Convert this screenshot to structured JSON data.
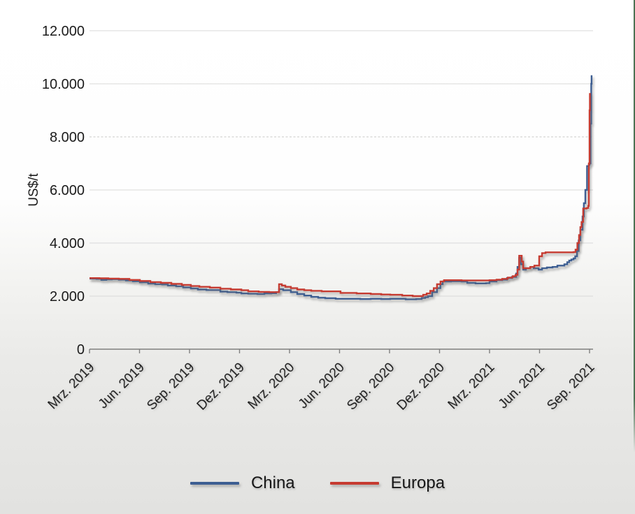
{
  "axes": {
    "ylabel": "US$/t",
    "y_ticks": [
      {
        "label": "12.000",
        "value": 12000
      },
      {
        "label": "10.000",
        "value": 10000
      },
      {
        "label": "8.000",
        "value": 8000
      },
      {
        "label": "6.000",
        "value": 6000
      },
      {
        "label": "4.000",
        "value": 4000
      },
      {
        "label": "2.000",
        "value": 2000
      },
      {
        "label": "0",
        "value": 0
      }
    ],
    "x_ticks": [
      "Mrz. 2019",
      "Jun. 2019",
      "Sep. 2019",
      "Dez. 2019",
      "Mrz. 2020",
      "Jun. 2020",
      "Sep. 2020",
      "Dez. 2020",
      "Mrz. 2021",
      "Jun. 2021",
      "Sep. 2021"
    ]
  },
  "legend": {
    "items": [
      {
        "label": "China",
        "color": "#3d5e92"
      },
      {
        "label": "Europa",
        "color": "#c63b31"
      }
    ]
  },
  "colors": {
    "china_line": "#3d5e92",
    "europa_line": "#c63b31",
    "gridline": "#d9d9d8",
    "axis": "#7f7f7f",
    "right_accent_green": "#4c7253"
  },
  "chart_data": {
    "type": "line",
    "title": "",
    "ylabel": "US$/t",
    "xlabel": "",
    "ylim": [
      0,
      12000
    ],
    "grid": "horizontal, dashed at 8000",
    "legend_position": "bottom",
    "x_unit": "months since Mrz. 2019 (0 = Mrz. 2019, 30 = Sep. 2021), ticks every 3 months",
    "x_tick_labels": [
      "Mrz. 2019",
      "Jun. 2019",
      "Sep. 2019",
      "Dez. 2019",
      "Mrz. 2020",
      "Jun. 2020",
      "Sep. 2020",
      "Dez. 2020",
      "Mrz. 2021",
      "Jun. 2021",
      "Sep. 2021"
    ],
    "interpolation": "step-after",
    "series": [
      {
        "name": "China",
        "color": "#3d5e92",
        "points": [
          [
            0,
            2660
          ],
          [
            0.42,
            2650
          ],
          [
            0.71,
            2610
          ],
          [
            1.01,
            2630
          ],
          [
            1.34,
            2640
          ],
          [
            1.76,
            2620
          ],
          [
            2.18,
            2590
          ],
          [
            2.6,
            2560
          ],
          [
            3.02,
            2520
          ],
          [
            3.52,
            2470
          ],
          [
            3.94,
            2450
          ],
          [
            4.36,
            2440
          ],
          [
            4.7,
            2400
          ],
          [
            5.2,
            2370
          ],
          [
            5.62,
            2330
          ],
          [
            6.08,
            2290
          ],
          [
            6.5,
            2250
          ],
          [
            7.01,
            2230
          ],
          [
            7.43,
            2230
          ],
          [
            7.85,
            2170
          ],
          [
            8.27,
            2150
          ],
          [
            8.81,
            2130
          ],
          [
            9.11,
            2100
          ],
          [
            9.52,
            2090
          ],
          [
            10.07,
            2080
          ],
          [
            10.49,
            2100
          ],
          [
            10.91,
            2110
          ],
          [
            11.2,
            2150
          ],
          [
            11.37,
            2260
          ],
          [
            11.62,
            2220
          ],
          [
            12.08,
            2150
          ],
          [
            12.46,
            2080
          ],
          [
            12.88,
            2020
          ],
          [
            13.3,
            1970
          ],
          [
            13.72,
            1940
          ],
          [
            14.14,
            1920
          ],
          [
            14.77,
            1900
          ],
          [
            15.61,
            1900
          ],
          [
            16.24,
            1890
          ],
          [
            16.87,
            1900
          ],
          [
            17.5,
            1890
          ],
          [
            18.04,
            1900
          ],
          [
            18.55,
            1900
          ],
          [
            18.97,
            1880
          ],
          [
            19.6,
            1890
          ],
          [
            19.93,
            1930
          ],
          [
            20.14,
            1960
          ],
          [
            20.31,
            2000
          ],
          [
            20.56,
            2150
          ],
          [
            20.85,
            2300
          ],
          [
            21.05,
            2450
          ],
          [
            21.19,
            2550
          ],
          [
            21.69,
            2560
          ],
          [
            22.32,
            2550
          ],
          [
            22.66,
            2500
          ],
          [
            23.16,
            2480
          ],
          [
            23.79,
            2490
          ],
          [
            24,
            2550
          ],
          [
            24.42,
            2600
          ],
          [
            24.76,
            2620
          ],
          [
            25.05,
            2680
          ],
          [
            25.34,
            2720
          ],
          [
            25.6,
            2850
          ],
          [
            25.68,
            3100
          ],
          [
            25.78,
            3450
          ],
          [
            25.89,
            3200
          ],
          [
            26.02,
            3000
          ],
          [
            26.18,
            3050
          ],
          [
            26.44,
            3100
          ],
          [
            26.65,
            3050
          ],
          [
            26.94,
            3000
          ],
          [
            27.15,
            3050
          ],
          [
            27.44,
            3080
          ],
          [
            27.78,
            3100
          ],
          [
            28.07,
            3150
          ],
          [
            28.32,
            3150
          ],
          [
            28.49,
            3200
          ],
          [
            28.66,
            3280
          ],
          [
            28.78,
            3340
          ],
          [
            28.91,
            3380
          ],
          [
            29.04,
            3420
          ],
          [
            29.14,
            3500
          ],
          [
            29.25,
            3700
          ],
          [
            29.35,
            4100
          ],
          [
            29.45,
            4500
          ],
          [
            29.58,
            5000
          ],
          [
            29.66,
            5500
          ],
          [
            29.75,
            6000
          ],
          [
            29.85,
            6900
          ],
          [
            29.96,
            6950
          ],
          [
            30,
            7000
          ],
          [
            30.06,
            8500
          ],
          [
            30.1,
            10000
          ],
          [
            30.12,
            10320
          ]
        ]
      },
      {
        "name": "Europa",
        "color": "#c63b31",
        "points": [
          [
            0,
            2680
          ],
          [
            0.59,
            2670
          ],
          [
            1.13,
            2660
          ],
          [
            1.76,
            2650
          ],
          [
            2.39,
            2610
          ],
          [
            3.02,
            2570
          ],
          [
            3.65,
            2530
          ],
          [
            4.28,
            2500
          ],
          [
            4.91,
            2460
          ],
          [
            5.54,
            2420
          ],
          [
            6.08,
            2380
          ],
          [
            6.59,
            2350
          ],
          [
            7.22,
            2320
          ],
          [
            7.85,
            2280
          ],
          [
            8.48,
            2250
          ],
          [
            9.11,
            2220
          ],
          [
            9.52,
            2180
          ],
          [
            10.15,
            2160
          ],
          [
            10.78,
            2150
          ],
          [
            11.24,
            2150
          ],
          [
            11.37,
            2450
          ],
          [
            11.54,
            2400
          ],
          [
            11.75,
            2350
          ],
          [
            12.08,
            2300
          ],
          [
            12.46,
            2250
          ],
          [
            12.88,
            2220
          ],
          [
            13.3,
            2200
          ],
          [
            13.93,
            2180
          ],
          [
            15.06,
            2120
          ],
          [
            16.03,
            2100
          ],
          [
            16.87,
            2080
          ],
          [
            17.5,
            2060
          ],
          [
            18.04,
            2050
          ],
          [
            18.76,
            2020
          ],
          [
            19.39,
            2000
          ],
          [
            19.81,
            2000
          ],
          [
            20.02,
            2050
          ],
          [
            20.23,
            2100
          ],
          [
            20.44,
            2200
          ],
          [
            20.65,
            2300
          ],
          [
            20.85,
            2450
          ],
          [
            21.06,
            2550
          ],
          [
            21.27,
            2600
          ],
          [
            21.69,
            2600
          ],
          [
            22.32,
            2590
          ],
          [
            22.95,
            2590
          ],
          [
            23.58,
            2590
          ],
          [
            24,
            2600
          ],
          [
            24.42,
            2620
          ],
          [
            24.76,
            2650
          ],
          [
            25.09,
            2700
          ],
          [
            25.39,
            2750
          ],
          [
            25.56,
            2800
          ],
          [
            25.68,
            3000
          ],
          [
            25.78,
            3520
          ],
          [
            25.93,
            3300
          ],
          [
            26.02,
            3050
          ],
          [
            26.23,
            3050
          ],
          [
            26.44,
            3100
          ],
          [
            26.69,
            3150
          ],
          [
            26.86,
            3150
          ],
          [
            26.98,
            3500
          ],
          [
            27.15,
            3620
          ],
          [
            27.36,
            3650
          ],
          [
            28.2,
            3650
          ],
          [
            28.83,
            3650
          ],
          [
            29.04,
            3660
          ],
          [
            29.16,
            3750
          ],
          [
            29.27,
            4000
          ],
          [
            29.37,
            4300
          ],
          [
            29.45,
            4600
          ],
          [
            29.52,
            4790
          ],
          [
            29.58,
            4800
          ],
          [
            29.62,
            5300
          ],
          [
            29.83,
            5320
          ],
          [
            29.92,
            5400
          ],
          [
            29.96,
            7000
          ],
          [
            30,
            9000
          ],
          [
            30.02,
            9650
          ]
        ]
      }
    ]
  }
}
